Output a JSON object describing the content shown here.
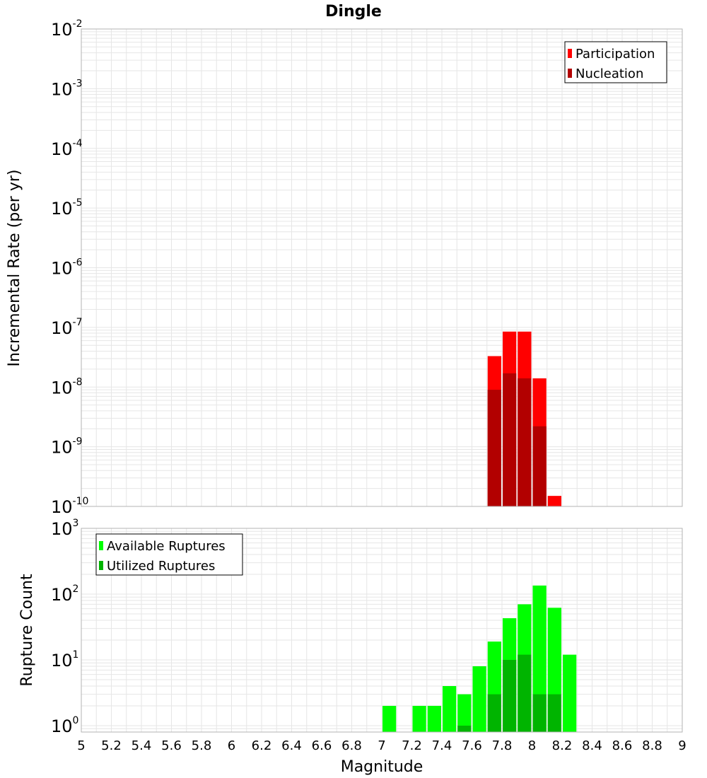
{
  "colors": {
    "participation": "#ff0000",
    "nucleation": "#b20000",
    "available": "#00ff00",
    "utilized": "#00b400",
    "grid": "#e6e6e6",
    "plot_border": "#b3b3b3"
  },
  "chart_data": [
    {
      "type": "bar",
      "title": "Dingle",
      "xlabel": "Magnitude",
      "ylabel": "Incremental Rate (per yr)",
      "xlim": [
        5,
        9
      ],
      "ylim": [
        1e-10,
        0.01
      ],
      "y_scale": "log",
      "y_ticks": [
        {
          "base": "10",
          "exp": "-10"
        },
        {
          "base": "10",
          "exp": "-9"
        },
        {
          "base": "10",
          "exp": "-8"
        },
        {
          "base": "10",
          "exp": "-7"
        },
        {
          "base": "10",
          "exp": "-6"
        },
        {
          "base": "10",
          "exp": "-5"
        },
        {
          "base": "10",
          "exp": "-4"
        },
        {
          "base": "10",
          "exp": "-3"
        },
        {
          "base": "10",
          "exp": "-2"
        }
      ],
      "grid": true,
      "legend_position": "top-right",
      "bar_width": 0.1,
      "series": [
        {
          "name": "Participation",
          "x": [
            7.75,
            7.85,
            7.95,
            8.05,
            8.15
          ],
          "values": [
            3.3e-08,
            8.5e-08,
            8.5e-08,
            1.4e-08,
            1.5e-10
          ]
        },
        {
          "name": "Nucleation",
          "x": [
            7.75,
            7.85,
            7.95,
            8.05
          ],
          "values": [
            9e-09,
            1.7e-08,
            1.4e-08,
            2.2e-09
          ]
        }
      ]
    },
    {
      "type": "bar",
      "xlabel": "Magnitude",
      "ylabel": "Rupture Count",
      "xlim": [
        5,
        9
      ],
      "ylim": [
        0.8,
        1000
      ],
      "y_scale": "log",
      "y_ticks": [
        {
          "base": "10",
          "exp": "0"
        },
        {
          "base": "10",
          "exp": "1"
        },
        {
          "base": "10",
          "exp": "2"
        },
        {
          "base": "10",
          "exp": "3"
        }
      ],
      "x_ticks": [
        "5",
        "5.2",
        "5.4",
        "5.6",
        "5.8",
        "6",
        "6.2",
        "6.4",
        "6.6",
        "6.8",
        "7",
        "7.2",
        "7.4",
        "7.6",
        "7.8",
        "8",
        "8.2",
        "8.4",
        "8.6",
        "8.8",
        "9"
      ],
      "grid": true,
      "legend_position": "top-left",
      "bar_width": 0.1,
      "series": [
        {
          "name": "Available Ruptures",
          "x": [
            7.05,
            7.25,
            7.35,
            7.45,
            7.55,
            7.65,
            7.75,
            7.85,
            7.95,
            8.05,
            8.15,
            8.25
          ],
          "values": [
            2,
            2,
            2,
            4,
            3,
            8,
            19,
            43,
            70,
            135,
            62,
            12
          ]
        },
        {
          "name": "Utilized Ruptures",
          "x": [
            7.55,
            7.75,
            7.85,
            7.95,
            8.05,
            8.15
          ],
          "values": [
            1,
            3,
            10,
            12,
            3,
            3
          ]
        }
      ]
    }
  ]
}
